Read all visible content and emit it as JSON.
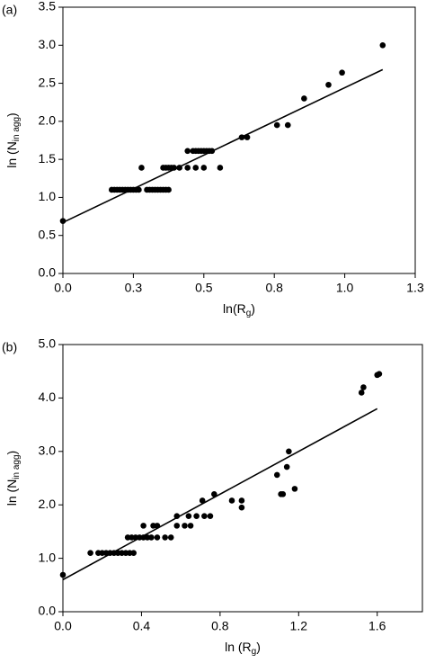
{
  "chart_data": [
    {
      "type": "scatter",
      "panel_label": "(a)",
      "xlabel": {
        "main": "ln(R",
        "sub": "g",
        "end": ")"
      },
      "ylabel": {
        "main": "ln (N",
        "sub": "in agg",
        "end": ")"
      },
      "color": "#000000",
      "xlim": [
        0,
        1.3
      ],
      "xticks": [
        {
          "value": 0,
          "label": "0.0"
        },
        {
          "value": 0.26,
          "label": "0.3"
        },
        {
          "value": 0.52,
          "label": "0.5"
        },
        {
          "value": 0.78,
          "label": "0.8"
        },
        {
          "value": 1.04,
          "label": "1.0"
        },
        {
          "value": 1.3,
          "label": "1.3"
        }
      ],
      "ylim": [
        0,
        3.5
      ],
      "yticks": [
        {
          "value": 0,
          "label": "0.0"
        },
        {
          "value": 0.5,
          "label": "0.5"
        },
        {
          "value": 1,
          "label": "1.0"
        },
        {
          "value": 1.5,
          "label": "1.5"
        },
        {
          "value": 2,
          "label": "2.0"
        },
        {
          "value": 2.5,
          "label": "2.5"
        },
        {
          "value": 3,
          "label": "3.0"
        },
        {
          "value": 3.5,
          "label": "3.5"
        }
      ],
      "x": [
        0,
        0.18,
        0.19,
        0.2,
        0.21,
        0.22,
        0.23,
        0.24,
        0.25,
        0.26,
        0.27,
        0.28,
        0.31,
        0.32,
        0.33,
        0.34,
        0.35,
        0.36,
        0.37,
        0.38,
        0.39,
        0.29,
        0.37,
        0.38,
        0.39,
        0.4,
        0.41,
        0.43,
        0.46,
        0.49,
        0.52,
        0.58,
        0.46,
        0.48,
        0.49,
        0.5,
        0.51,
        0.52,
        0.53,
        0.54,
        0.55,
        0.66,
        0.68,
        0.79,
        0.83,
        0.89,
        0.98,
        1.03,
        1.18
      ],
      "y": [
        0.69,
        1.1,
        1.1,
        1.1,
        1.1,
        1.1,
        1.1,
        1.1,
        1.1,
        1.1,
        1.1,
        1.1,
        1.1,
        1.1,
        1.1,
        1.1,
        1.1,
        1.1,
        1.1,
        1.1,
        1.1,
        1.39,
        1.39,
        1.39,
        1.39,
        1.39,
        1.39,
        1.39,
        1.39,
        1.39,
        1.39,
        1.39,
        1.61,
        1.61,
        1.61,
        1.61,
        1.61,
        1.61,
        1.61,
        1.61,
        1.61,
        1.79,
        1.79,
        1.95,
        1.95,
        2.3,
        2.48,
        2.64,
        3.0
      ],
      "fit": {
        "x": [
          0,
          1.18
        ],
        "y": [
          0.67,
          2.68
        ]
      }
    },
    {
      "type": "scatter",
      "panel_label": "(b)",
      "xlabel": {
        "main": "ln (R",
        "sub": "g",
        "end": ")"
      },
      "ylabel": {
        "main": "ln (N",
        "sub": "in agg",
        "end": ")"
      },
      "color": "#000000",
      "xlim": [
        0,
        1.83
      ],
      "xticks": [
        {
          "value": 0,
          "label": "0.0"
        },
        0.4,
        0.8,
        1.2,
        1.6
      ],
      "ylim": [
        0,
        5
      ],
      "yticks": [
        {
          "value": 0,
          "label": "0.0"
        },
        {
          "value": 1,
          "label": "1.0"
        },
        {
          "value": 2,
          "label": "2.0"
        },
        {
          "value": 3,
          "label": "3.0"
        },
        {
          "value": 4,
          "label": "4.0"
        },
        {
          "value": 5,
          "label": "5.0"
        }
      ],
      "x": [
        0,
        0.14,
        0.18,
        0.2,
        0.22,
        0.24,
        0.26,
        0.28,
        0.3,
        0.32,
        0.34,
        0.36,
        0.33,
        0.35,
        0.37,
        0.39,
        0.41,
        0.43,
        0.45,
        0.48,
        0.52,
        0.55,
        0.41,
        0.46,
        0.48,
        0.58,
        0.62,
        0.65,
        0.58,
        0.64,
        0.68,
        0.72,
        0.75,
        0.71,
        0.86,
        0.91,
        0.77,
        1.11,
        1.12,
        0.91,
        1.18,
        1.09,
        1.14,
        1.15,
        1.52,
        1.53,
        1.6,
        1.61
      ],
      "y": [
        0.69,
        1.1,
        1.1,
        1.1,
        1.1,
        1.1,
        1.1,
        1.1,
        1.1,
        1.1,
        1.1,
        1.1,
        1.39,
        1.39,
        1.39,
        1.39,
        1.39,
        1.39,
        1.39,
        1.39,
        1.39,
        1.39,
        1.61,
        1.61,
        1.61,
        1.61,
        1.61,
        1.61,
        1.79,
        1.79,
        1.79,
        1.79,
        1.79,
        2.08,
        2.08,
        2.08,
        2.2,
        2.2,
        2.2,
        1.95,
        2.3,
        2.56,
        2.71,
        3.0,
        4.1,
        4.2,
        4.43,
        4.45
      ],
      "fit": {
        "x": [
          0,
          1.6
        ],
        "y": [
          0.6,
          3.8
        ]
      }
    }
  ]
}
